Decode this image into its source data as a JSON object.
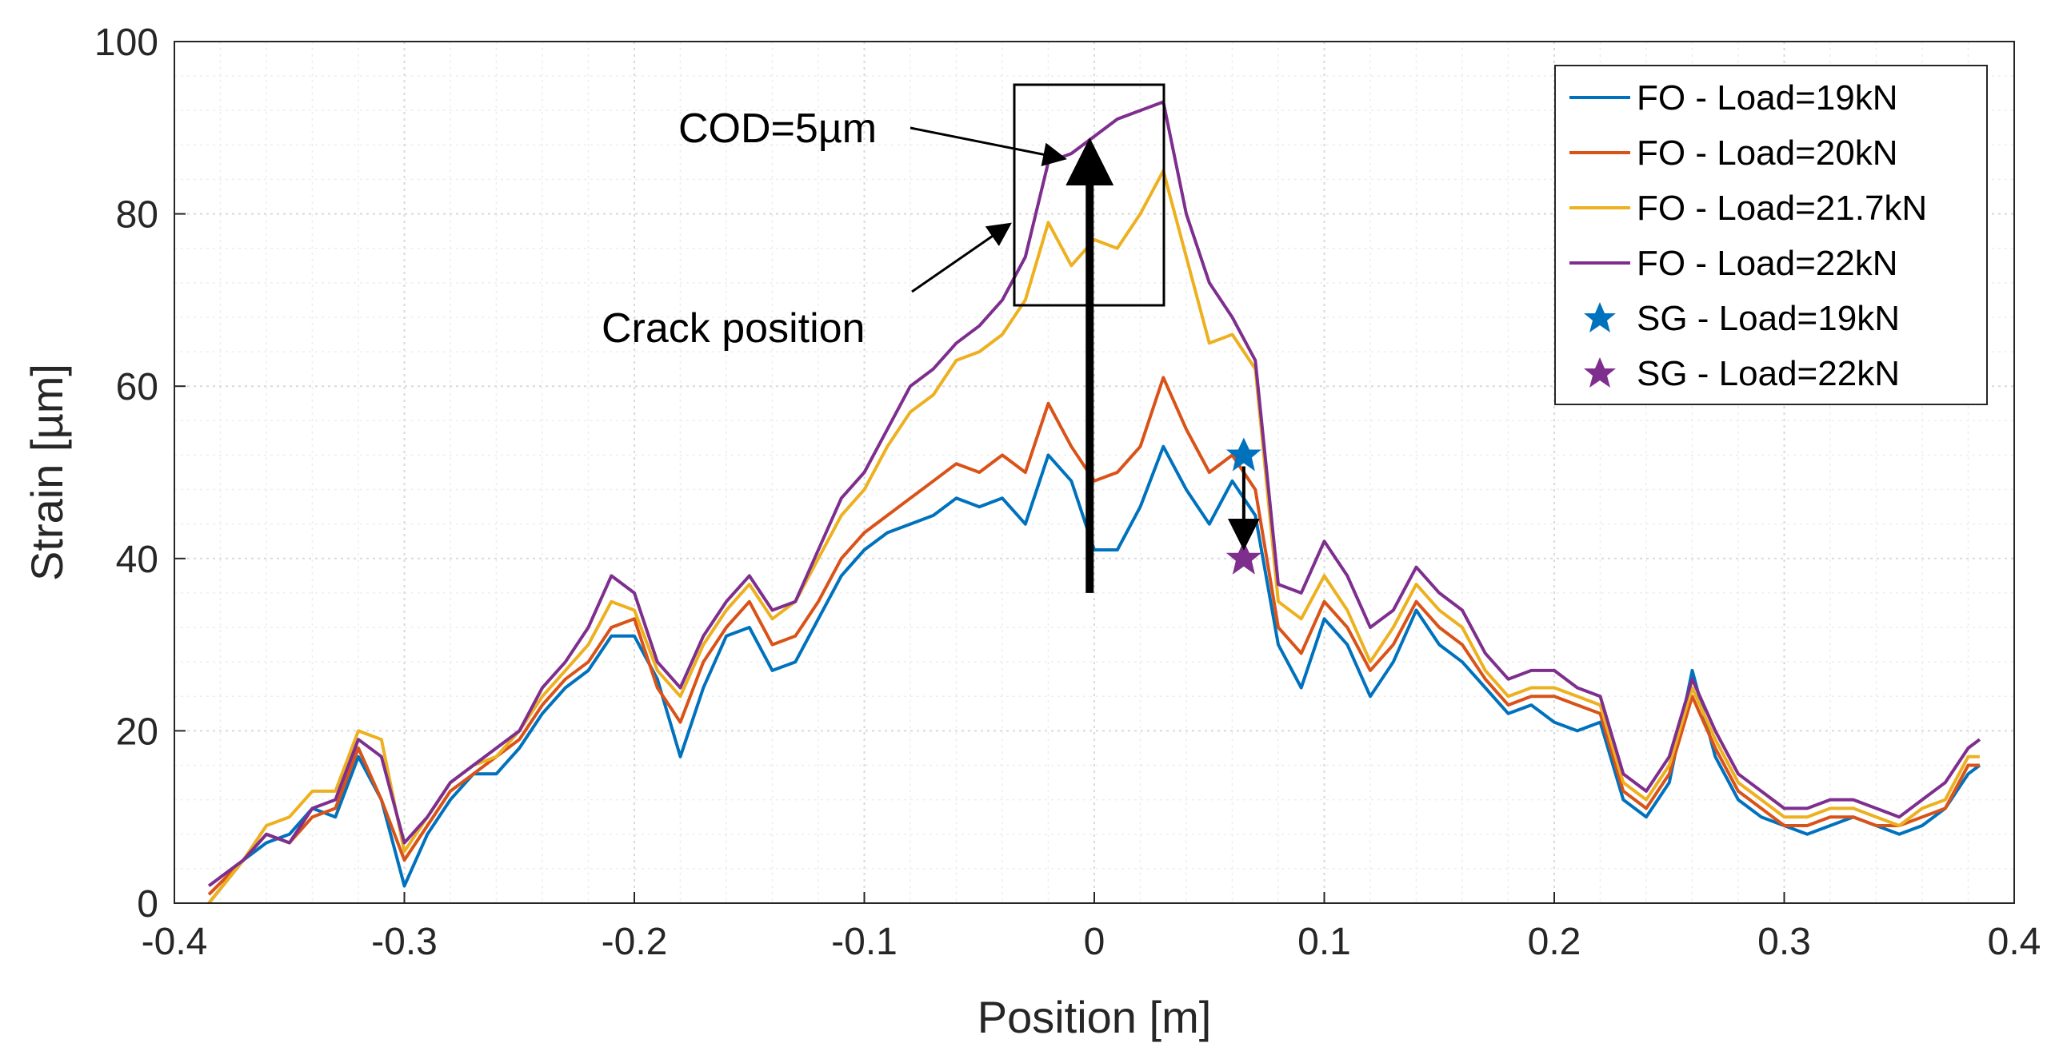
{
  "chart_data": {
    "type": "line",
    "xlabel": "Position [m]",
    "ylabel": "Strain [µm]",
    "xlim": [
      -0.4,
      0.4
    ],
    "ylim": [
      0,
      100
    ],
    "xticks": [
      "-0.4",
      "-0.3",
      "-0.2",
      "-0.1",
      "0",
      "0.1",
      "0.2",
      "0.3",
      "0.4"
    ],
    "yticks": [
      "0",
      "20",
      "40",
      "60",
      "80",
      "100"
    ],
    "grid": true,
    "legend_position": "top-right",
    "x": [
      -0.385,
      -0.37,
      -0.36,
      -0.35,
      -0.34,
      -0.33,
      -0.32,
      -0.31,
      -0.3,
      -0.29,
      -0.28,
      -0.27,
      -0.26,
      -0.25,
      -0.24,
      -0.23,
      -0.22,
      -0.21,
      -0.2,
      -0.19,
      -0.18,
      -0.17,
      -0.16,
      -0.15,
      -0.14,
      -0.13,
      -0.12,
      -0.11,
      -0.1,
      -0.09,
      -0.08,
      -0.07,
      -0.06,
      -0.05,
      -0.04,
      -0.03,
      -0.02,
      -0.01,
      0.0,
      0.01,
      0.02,
      0.03,
      0.04,
      0.05,
      0.06,
      0.07,
      0.08,
      0.09,
      0.1,
      0.11,
      0.12,
      0.13,
      0.14,
      0.15,
      0.16,
      0.17,
      0.18,
      0.19,
      0.2,
      0.21,
      0.22,
      0.23,
      0.24,
      0.25,
      0.26,
      0.27,
      0.28,
      0.29,
      0.3,
      0.31,
      0.32,
      0.33,
      0.34,
      0.35,
      0.36,
      0.37,
      0.38,
      0.385
    ],
    "series": [
      {
        "name": "FO - Load=19kN",
        "color": "#0072BD",
        "values": [
          0,
          5,
          7,
          8,
          11,
          10,
          17,
          12,
          2,
          8,
          12,
          15,
          15,
          18,
          22,
          25,
          27,
          31,
          31,
          26,
          17,
          25,
          31,
          32,
          27,
          28,
          33,
          38,
          41,
          43,
          44,
          45,
          47,
          46,
          47,
          44,
          52,
          49,
          41,
          41,
          46,
          53,
          48,
          44,
          49,
          45,
          30,
          25,
          33,
          30,
          24,
          28,
          34,
          30,
          28,
          25,
          22,
          23,
          21,
          20,
          21,
          12,
          10,
          14,
          27,
          17,
          12,
          10,
          9,
          8,
          9,
          10,
          9,
          8,
          9,
          11,
          15,
          16
        ]
      },
      {
        "name": "FO - Load=20kN",
        "color": "#D95319",
        "values": [
          1,
          5,
          8,
          7,
          10,
          11,
          18,
          12,
          5,
          9,
          13,
          15,
          17,
          19,
          23,
          26,
          28,
          32,
          33,
          25,
          21,
          28,
          32,
          35,
          30,
          31,
          35,
          40,
          43,
          45,
          47,
          49,
          51,
          50,
          52,
          50,
          58,
          53,
          49,
          50,
          53,
          61,
          55,
          50,
          52,
          48,
          32,
          29,
          35,
          32,
          27,
          30,
          35,
          32,
          30,
          26,
          23,
          24,
          24,
          23,
          22,
          13,
          11,
          15,
          24,
          18,
          13,
          11,
          9,
          9,
          10,
          10,
          9,
          9,
          10,
          11,
          16,
          16
        ]
      },
      {
        "name": "FO - Load=21.7kN",
        "color": "#EDB120",
        "values": [
          0,
          5,
          9,
          10,
          13,
          13,
          20,
          19,
          6,
          10,
          14,
          16,
          17,
          20,
          24,
          27,
          30,
          35,
          34,
          27,
          24,
          30,
          34,
          37,
          33,
          35,
          40,
          45,
          48,
          53,
          57,
          59,
          63,
          64,
          66,
          70,
          79,
          74,
          77,
          76,
          80,
          85,
          75,
          65,
          66,
          62,
          35,
          33,
          38,
          34,
          28,
          32,
          37,
          34,
          32,
          27,
          24,
          25,
          25,
          24,
          23,
          14,
          12,
          16,
          25,
          19,
          14,
          12,
          10,
          10,
          11,
          11,
          10,
          9,
          11,
          12,
          17,
          17
        ]
      },
      {
        "name": "FO - Load=22kN",
        "color": "#7E2F8E",
        "values": [
          2,
          5,
          8,
          7,
          11,
          12,
          19,
          17,
          7,
          10,
          14,
          16,
          18,
          20,
          25,
          28,
          32,
          38,
          36,
          28,
          25,
          31,
          35,
          38,
          34,
          35,
          41,
          47,
          50,
          55,
          60,
          62,
          65,
          67,
          70,
          75,
          86,
          87,
          89,
          91,
          92,
          93,
          80,
          72,
          68,
          63,
          37,
          36,
          42,
          38,
          32,
          34,
          39,
          36,
          34,
          29,
          26,
          27,
          27,
          25,
          24,
          15,
          13,
          17,
          26,
          20,
          15,
          13,
          11,
          11,
          12,
          12,
          11,
          10,
          12,
          14,
          18,
          19
        ]
      }
    ],
    "markers": [
      {
        "name": "SG - Load=19kN",
        "color": "#0072BD",
        "x": 0.065,
        "y": 52
      },
      {
        "name": "SG - Load=22kN",
        "color": "#7E2F8E",
        "x": 0.065,
        "y": 40
      }
    ],
    "annotations": {
      "cod_label": "COD=5µm",
      "crack_label": "Crack position"
    }
  }
}
